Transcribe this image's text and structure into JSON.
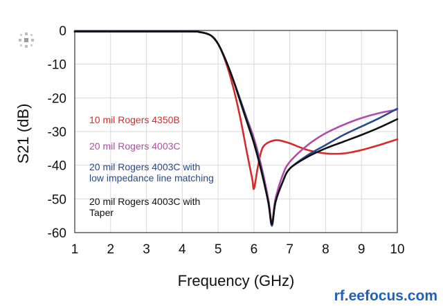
{
  "chart_data": {
    "type": "line",
    "xlabel": "Frequency (GHz)",
    "ylabel": "S21 (dB)",
    "xlim": [
      1,
      10
    ],
    "ylim": [
      -60,
      0
    ],
    "x_ticks": [
      "1",
      "2",
      "3",
      "4",
      "5",
      "6",
      "7",
      "8",
      "9",
      "10"
    ],
    "y_ticks": [
      "0",
      "-10",
      "-20",
      "-30",
      "-40",
      "-50",
      "-60"
    ],
    "grid": true,
    "legend_placement": "inside-left",
    "series": [
      {
        "name": "10 mil Rogers 4350B",
        "color": "#d42a2a",
        "x": [
          1,
          4,
          4.5,
          4.8,
          5.0,
          5.2,
          5.4,
          5.6,
          5.8,
          5.95,
          6.0,
          6.1,
          6.2,
          6.3,
          6.5,
          6.7,
          7.0,
          7.5,
          8.0,
          8.5,
          9.0,
          9.5,
          10
        ],
        "y": [
          -0.3,
          -0.3,
          -0.5,
          -1.5,
          -4,
          -9,
          -16,
          -25,
          -36,
          -44,
          -47,
          -41,
          -36,
          -34,
          -32.8,
          -32.6,
          -33.5,
          -35.5,
          -36.5,
          -36.5,
          -35.5,
          -34,
          -32.3
        ]
      },
      {
        "name": "20 mil Rogers 4003C",
        "color": "#b04aa6",
        "x": [
          1,
          4,
          4.5,
          4.8,
          5.0,
          5.2,
          5.4,
          5.6,
          5.8,
          6.0,
          6.2,
          6.4,
          6.5,
          6.6,
          6.8,
          7.0,
          7.5,
          8.0,
          8.5,
          9.0,
          9.5,
          10
        ],
        "y": [
          -0.3,
          -0.3,
          -0.5,
          -1.5,
          -4,
          -8.5,
          -14,
          -20,
          -26,
          -32,
          -40,
          -50,
          -57,
          -50,
          -43,
          -39,
          -34,
          -30.5,
          -28,
          -26,
          -24.5,
          -23.5
        ]
      },
      {
        "name": "20 mil Rogers 4003C with low impedance line matching",
        "color": "#244a8c",
        "x": [
          1,
          4,
          4.5,
          4.8,
          5.0,
          5.2,
          5.4,
          5.6,
          5.8,
          6.0,
          6.2,
          6.4,
          6.5,
          6.6,
          6.8,
          7.0,
          7.5,
          8.0,
          8.5,
          9.0,
          9.5,
          10
        ],
        "y": [
          -0.3,
          -0.3,
          -0.5,
          -1.5,
          -4,
          -8.5,
          -14,
          -20,
          -26.5,
          -33,
          -41,
          -51,
          -58,
          -51,
          -45,
          -41,
          -37,
          -34,
          -31,
          -28.5,
          -26,
          -23.2
        ]
      },
      {
        "name": "20 mil Rogers 4003C with Taper",
        "color": "#111111",
        "x": [
          1,
          4,
          4.5,
          4.8,
          5.0,
          5.2,
          5.4,
          5.6,
          5.8,
          6.0,
          6.2,
          6.4,
          6.5,
          6.6,
          6.8,
          7.0,
          7.5,
          8.0,
          8.5,
          9.0,
          9.5,
          10
        ],
        "y": [
          -0.3,
          -0.3,
          -0.5,
          -1.5,
          -4,
          -8.5,
          -14,
          -20.5,
          -27,
          -33.5,
          -41.5,
          -51,
          -57.5,
          -51,
          -45,
          -41,
          -37.5,
          -35,
          -33,
          -31,
          -28.8,
          -26.3
        ]
      }
    ],
    "legend_labels": [
      {
        "lines": [
          "10 mil Rogers 4350B"
        ],
        "color": "#d42a2a"
      },
      {
        "lines": [
          "20 mil Rogers 4003C"
        ],
        "color": "#b04aa6"
      },
      {
        "lines": [
          "20 mil Rogers 4003C with",
          "low impedance line matching"
        ],
        "color": "#244a8c"
      },
      {
        "lines": [
          "20 mil Rogers 4003C with",
          "Taper"
        ],
        "color": "#111111"
      }
    ]
  },
  "watermark": "rf.eefocus.com",
  "corner_logo_icon": "eefocus-logo-icon"
}
